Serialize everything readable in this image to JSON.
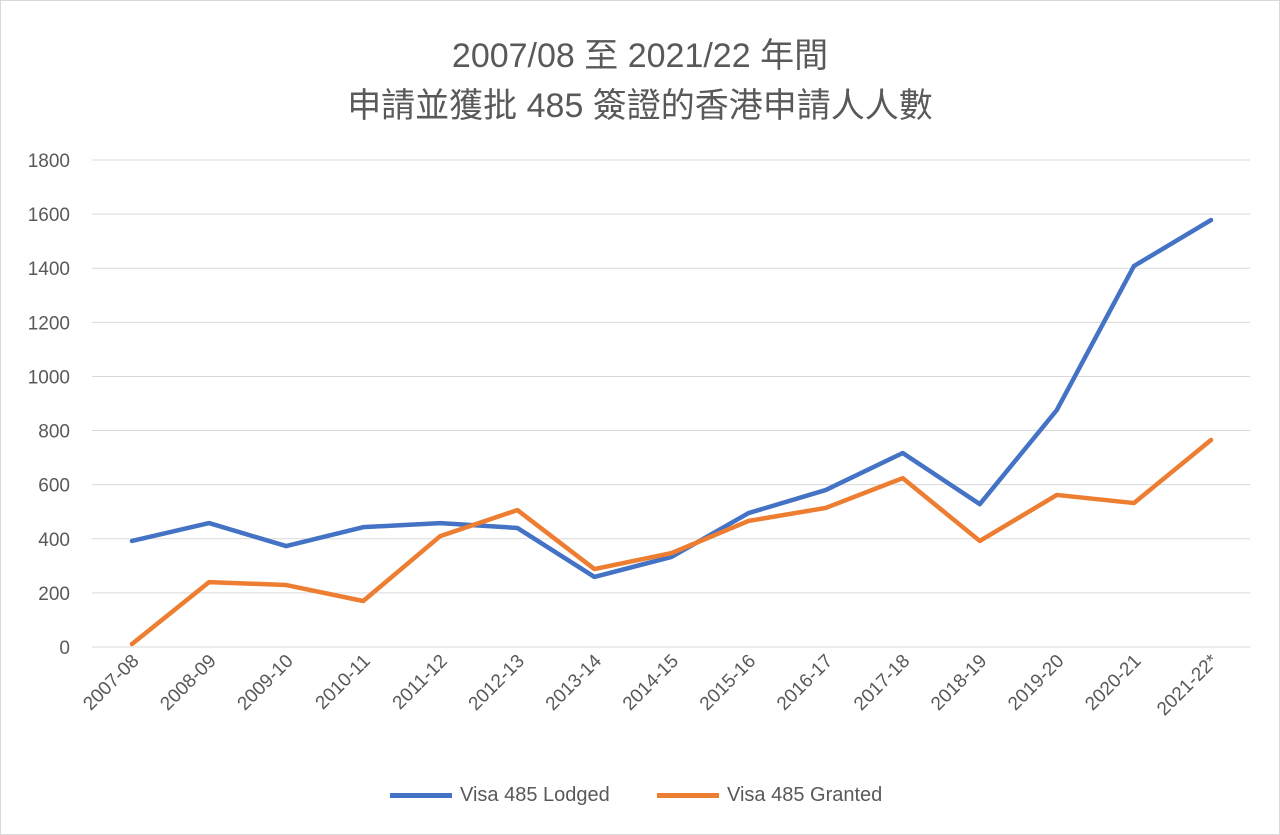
{
  "chart_data": {
    "type": "line",
    "title_line1": "2007/08 至 2021/22 年間",
    "title_line2": "申請並獲批 485 簽證的香港申請人人數",
    "categories": [
      "2007-08",
      "2008-09",
      "2009-10",
      "2010-11",
      "2011-12",
      "2012-13",
      "2013-14",
      "2014-15",
      "2015-16",
      "2016-17",
      "2017-18",
      "2018-19",
      "2019-20",
      "2020-21",
      "2021-22*"
    ],
    "series": [
      {
        "name": "Visa 485 Lodged",
        "color": "#4472c4",
        "values": [
          392,
          458,
          373,
          443,
          458,
          440,
          259,
          333,
          495,
          580,
          717,
          528,
          876,
          1408,
          1578
        ]
      },
      {
        "name": "Visa 485 Granted",
        "color": "#ed7d31",
        "values": [
          11,
          240,
          229,
          170,
          410,
          506,
          288,
          347,
          466,
          514,
          624,
          392,
          562,
          532,
          765
        ]
      }
    ],
    "ylim": [
      0,
      1800
    ],
    "yticks": [
      0,
      200,
      400,
      600,
      800,
      1000,
      1200,
      1400,
      1600,
      1800
    ],
    "grid": true,
    "legend_position": "bottom"
  }
}
